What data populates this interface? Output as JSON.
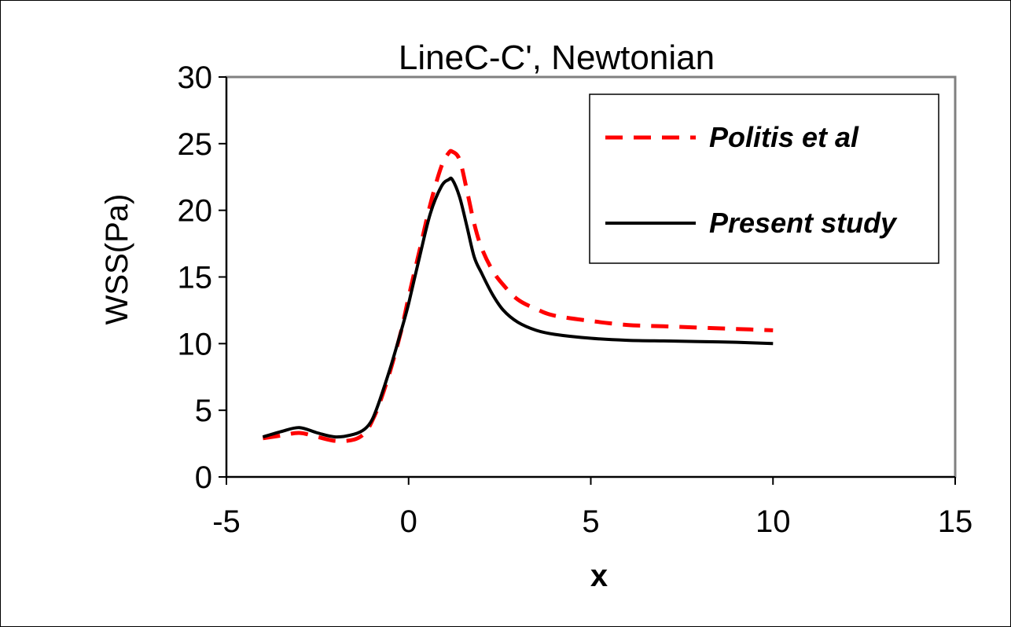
{
  "chart_data": {
    "type": "line",
    "title": "LineC-C', Newtonian",
    "xlabel": "x",
    "ylabel": "WSS(Pa)",
    "xlim": [
      -5,
      15
    ],
    "ylim": [
      0,
      30
    ],
    "xticks": [
      -5,
      0,
      5,
      10,
      15
    ],
    "yticks": [
      0,
      5,
      10,
      15,
      20,
      25,
      30
    ],
    "grid": false,
    "legend_position": "top-right",
    "series": [
      {
        "name": "Politis et al",
        "style": "dashed",
        "color": "#ff0000",
        "x": [
          -4.0,
          -3.5,
          -3.0,
          -2.5,
          -2.0,
          -1.5,
          -1.2,
          -1.0,
          -0.8,
          -0.5,
          -0.2,
          0.0,
          0.3,
          0.6,
          0.9,
          1.1,
          1.2,
          1.4,
          1.6,
          1.8,
          2.0,
          2.3,
          2.6,
          3.0,
          3.5,
          4.0,
          5.0,
          6.0,
          7.0,
          8.0,
          9.0,
          10.0
        ],
        "y": [
          2.9,
          3.1,
          3.3,
          3.0,
          2.7,
          2.8,
          3.3,
          4.2,
          5.5,
          8.0,
          11.0,
          13.5,
          17.0,
          20.5,
          23.3,
          24.3,
          24.4,
          23.8,
          21.5,
          19.0,
          17.2,
          15.5,
          14.4,
          13.3,
          12.6,
          12.1,
          11.7,
          11.4,
          11.3,
          11.2,
          11.1,
          11.0
        ]
      },
      {
        "name": "Present study",
        "style": "solid",
        "color": "#000000",
        "x": [
          -4.0,
          -3.5,
          -3.0,
          -2.5,
          -2.0,
          -1.5,
          -1.2,
          -1.0,
          -0.8,
          -0.5,
          -0.2,
          0.0,
          0.3,
          0.6,
          0.9,
          1.1,
          1.2,
          1.4,
          1.6,
          1.8,
          2.0,
          2.3,
          2.6,
          3.0,
          3.5,
          4.0,
          5.0,
          6.0,
          7.0,
          8.0,
          9.0,
          10.0
        ],
        "y": [
          3.0,
          3.4,
          3.7,
          3.3,
          3.0,
          3.2,
          3.6,
          4.3,
          5.7,
          8.2,
          11.0,
          13.0,
          16.5,
          19.8,
          21.8,
          22.3,
          22.3,
          21.0,
          18.8,
          16.5,
          15.3,
          13.7,
          12.5,
          11.6,
          11.0,
          10.7,
          10.4,
          10.25,
          10.2,
          10.15,
          10.1,
          10.0
        ]
      }
    ]
  }
}
